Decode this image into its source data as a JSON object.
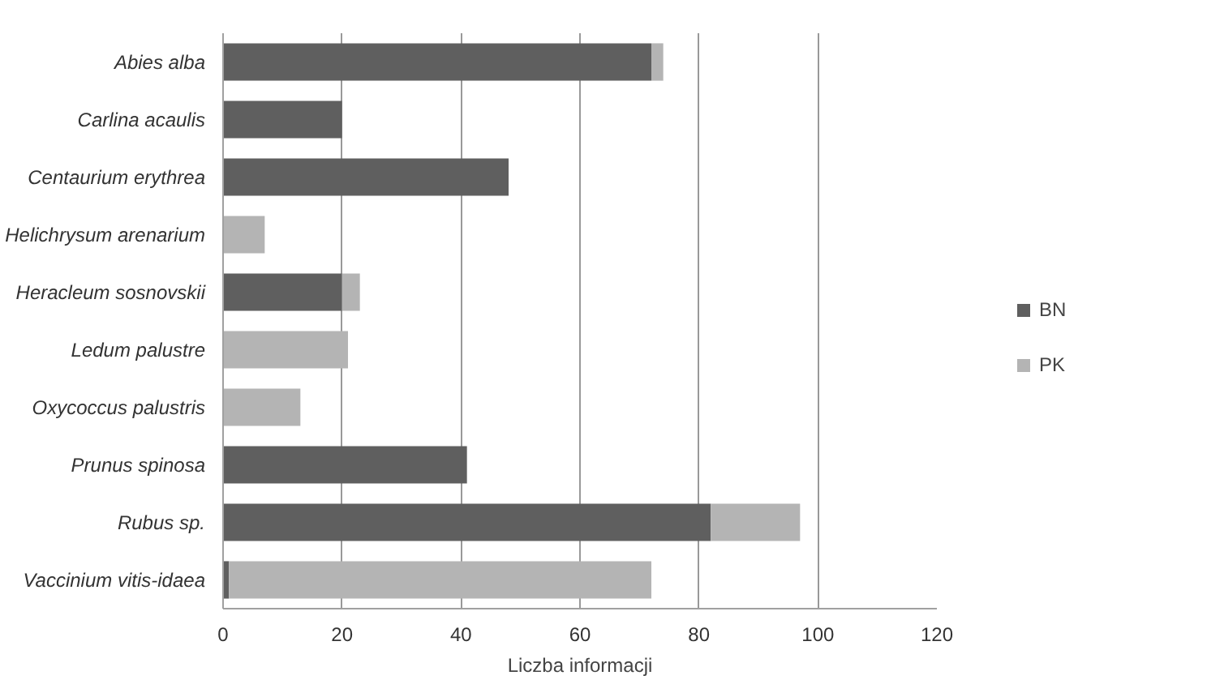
{
  "chart_data": {
    "type": "bar",
    "orientation": "horizontal",
    "stacked": true,
    "xlabel": "Liczba informacji",
    "categories": [
      "Abies alba",
      "Carlina acaulis",
      "Centaurium erythrea",
      "Helichrysum arenarium",
      "Heracleum sosnovskii",
      "Ledum palustre",
      "Oxycoccus palustris",
      "Prunus spinosa",
      "Rubus sp.",
      "Vaccinium vitis-idaea"
    ],
    "series": [
      {
        "name": "BN",
        "color": "#5f5f5f",
        "values": [
          72,
          20,
          48,
          0,
          20,
          0,
          0,
          41,
          82,
          1
        ]
      },
      {
        "name": "PK",
        "color": "#b4b4b4",
        "values": [
          2,
          0,
          0,
          7,
          3,
          21,
          13,
          0,
          15,
          71
        ]
      }
    ],
    "xlim": [
      0,
      120
    ],
    "xticks": [
      0,
      20,
      40,
      60,
      80,
      100,
      120
    ],
    "grid": "x",
    "legend": "right"
  }
}
